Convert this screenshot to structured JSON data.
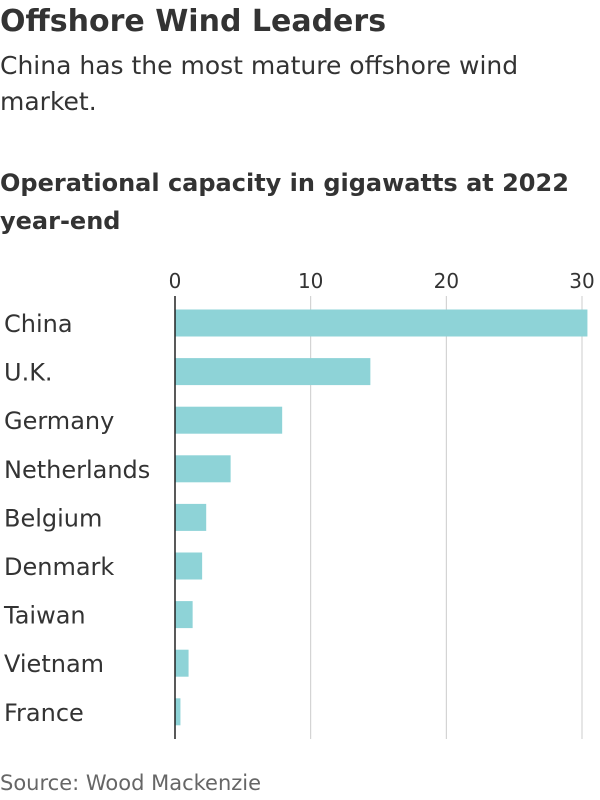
{
  "title": "Offshore Wind Leaders",
  "subtitle": "China has the most mature offshore wind market.",
  "source": "Source: Wood Mackenzie",
  "colors": {
    "bar": "#8ed3d7",
    "gridline": "#cccccc",
    "axis": "#222222",
    "text": "#333333"
  },
  "chart_data": {
    "type": "bar",
    "orientation": "horizontal",
    "title": "Operational capacity in gigawatts at 2022 year-end",
    "categories": [
      "China",
      "U.K.",
      "Germany",
      "Netherlands",
      "Belgium",
      "Denmark",
      "Taiwan",
      "Vietnam",
      "France"
    ],
    "values": [
      30.4,
      14.4,
      7.9,
      4.1,
      2.3,
      2.0,
      1.3,
      1.0,
      0.4
    ],
    "xlim": [
      0,
      30
    ],
    "xticks": [
      "0",
      "10",
      "20",
      "30"
    ],
    "xtick_values": [
      0,
      10,
      20,
      30
    ],
    "grid": true,
    "legend": "none"
  }
}
